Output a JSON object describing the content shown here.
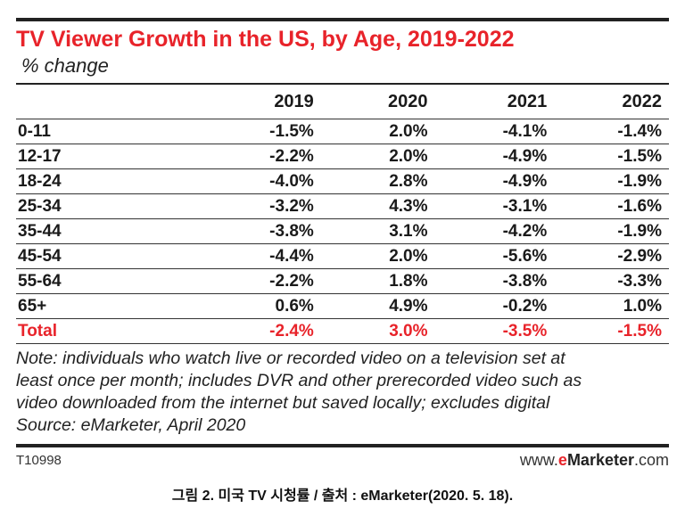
{
  "chart_data": {
    "type": "table",
    "title": "TV Viewer Growth in the US, by Age, 2019-2022",
    "subtitle": "% change",
    "columns": [
      "2019",
      "2020",
      "2021",
      "2022"
    ],
    "rows": [
      {
        "label": "0-11",
        "values": [
          "-1.5%",
          "2.0%",
          "-4.1%",
          "-1.4%"
        ]
      },
      {
        "label": "12-17",
        "values": [
          "-2.2%",
          "2.0%",
          "-4.9%",
          "-1.5%"
        ]
      },
      {
        "label": "18-24",
        "values": [
          "-4.0%",
          "2.8%",
          "-4.9%",
          "-1.9%"
        ]
      },
      {
        "label": "25-34",
        "values": [
          "-3.2%",
          "4.3%",
          "-3.1%",
          "-1.6%"
        ]
      },
      {
        "label": "35-44",
        "values": [
          "-3.8%",
          "3.1%",
          "-4.2%",
          "-1.9%"
        ]
      },
      {
        "label": "45-54",
        "values": [
          "-4.4%",
          "2.0%",
          "-5.6%",
          "-2.9%"
        ]
      },
      {
        "label": "55-64",
        "values": [
          "-2.2%",
          "1.8%",
          "-3.8%",
          "-3.3%"
        ]
      },
      {
        "label": "65+",
        "values": [
          "0.6%",
          "4.9%",
          "-0.2%",
          "1.0%"
        ]
      }
    ],
    "total": {
      "label": "Total",
      "values": [
        "-2.4%",
        "3.0%",
        "-3.5%",
        "-1.5%"
      ]
    },
    "note_lines": [
      "Note: individuals who watch live or recorded video on a television set at",
      "least once per month; includes DVR and other prerecorded video such as",
      "video downloaded from the internet but saved locally; excludes digital",
      "Source: eMarketer, April 2020"
    ]
  },
  "footer": {
    "id": "T10998",
    "brand_prefix": "www.",
    "brand_e": "e",
    "brand_marketer": "Marketer",
    "brand_suffix": ".com"
  },
  "caption": "그림 2. 미국 TV 시청률 / 출처 : eMarketer(2020. 5. 18).",
  "colors": {
    "accent": "#e8232a",
    "text": "#1a1a1a",
    "rule": "#222222"
  }
}
